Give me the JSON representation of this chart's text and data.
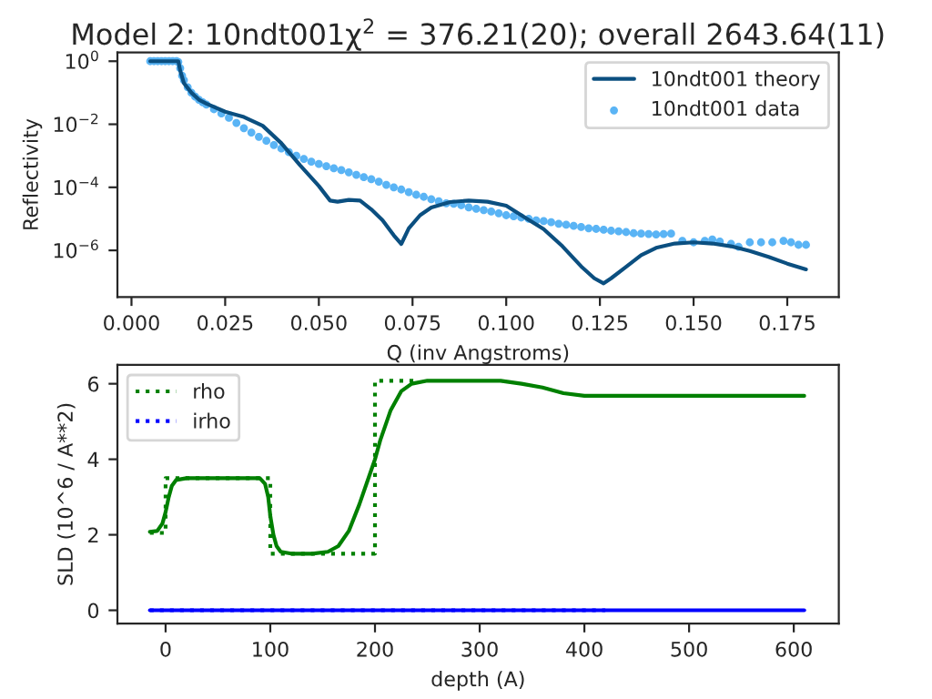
{
  "chart_data": [
    {
      "type": "line",
      "title": "Model 2: 10ndt001χ$^{2}$ = 376.21(20); overall 2643.64(11)",
      "xlabel": "Q (inv Angstroms)",
      "ylabel": "Reflectivity",
      "log": "y",
      "legend": "top right",
      "grid": false,
      "xlim": [
        -0.00375,
        0.18875
      ],
      "ylim": [
        3.3e-08,
        1.9
      ],
      "xticks": [
        {
          "value": 0,
          "label": "0.000"
        },
        0.025,
        {
          "value": 0.05,
          "label": "0.050"
        },
        0.075,
        {
          "value": 0.1,
          "label": "0.100"
        },
        0.125,
        {
          "value": 0.15,
          "label": "0.150"
        },
        0.175
      ],
      "yticks": [
        {
          "value": 1,
          "label": "10$^{0}$"
        },
        {
          "value": 0.01,
          "label": "10$^{−2}$"
        },
        {
          "value": 0.0001,
          "label": "10$^{−4}$"
        },
        {
          "value": 1e-06,
          "label": "10$^{−6}$"
        }
      ],
      "series": [
        {
          "name": "10ndt001 theory",
          "color": "#0b4f80",
          "line_style": "solid",
          "marker": "none",
          "x": [
            0.005,
            0.0125,
            0.013,
            0.014,
            0.016,
            0.018,
            0.02,
            0.025,
            0.03,
            0.035,
            0.04,
            0.045,
            0.05,
            0.053,
            0.055,
            0.058,
            0.061,
            0.064,
            0.067,
            0.07,
            0.072,
            0.074,
            0.077,
            0.08,
            0.085,
            0.09,
            0.095,
            0.1,
            0.105,
            0.11,
            0.115,
            0.12,
            0.1235,
            0.126,
            0.128,
            0.132,
            0.136,
            0.14,
            0.145,
            0.15,
            0.155,
            0.16,
            0.165,
            0.17,
            0.175,
            0.18
          ],
          "values": [
            1,
            1,
            0.5,
            0.2,
            0.1,
            0.06,
            0.045,
            0.025,
            0.017,
            0.009,
            0.0025,
            0.0005,
            0.00011,
            3.8e-05,
            3.5e-05,
            4e-05,
            3.8e-05,
            2e-05,
            9e-06,
            3e-06,
            1.6e-06,
            5e-06,
            1.3e-05,
            2.3e-05,
            3.4e-05,
            3.8e-05,
            3.5e-05,
            2.6e-05,
            1.1e-05,
            4.7e-06,
            1.35e-06,
            3.1e-07,
            1.3e-07,
            9e-08,
            1.3e-07,
            3e-07,
            7e-07,
            1.2e-06,
            1.65e-06,
            1.8e-06,
            1.65e-06,
            1.35e-06,
            9.5e-07,
            6.2e-07,
            3.8e-07,
            2.5e-07
          ]
        },
        {
          "name": "10ndt001 data",
          "type": "scatter",
          "color": "#5ab4f5",
          "marker": "circle",
          "x": [
            0.005,
            0.006,
            0.007,
            0.008,
            0.009,
            0.01,
            0.011,
            0.012,
            0.0125,
            0.013,
            0.0135,
            0.014,
            0.015,
            0.016,
            0.017,
            0.018,
            0.019,
            0.02,
            0.022,
            0.024,
            0.026,
            0.028,
            0.03,
            0.032,
            0.034,
            0.036,
            0.038,
            0.04,
            0.042,
            0.044,
            0.046,
            0.048,
            0.05,
            0.052,
            0.054,
            0.056,
            0.058,
            0.06,
            0.062,
            0.064,
            0.066,
            0.068,
            0.07,
            0.072,
            0.074,
            0.076,
            0.078,
            0.08,
            0.082,
            0.084,
            0.086,
            0.088,
            0.09,
            0.092,
            0.094,
            0.096,
            0.098,
            0.1,
            0.102,
            0.104,
            0.106,
            0.108,
            0.11,
            0.112,
            0.114,
            0.116,
            0.118,
            0.12,
            0.122,
            0.124,
            0.126,
            0.128,
            0.13,
            0.132,
            0.134,
            0.136,
            0.138,
            0.14,
            0.142,
            0.144,
            0.147,
            0.15,
            0.153,
            0.155,
            0.157,
            0.16,
            0.162,
            0.165,
            0.168,
            0.171,
            0.174,
            0.176,
            0.178,
            0.18
          ],
          "values": [
            1,
            1,
            1,
            1,
            1,
            1,
            1,
            1,
            0.95,
            0.6,
            0.35,
            0.25,
            0.15,
            0.1,
            0.075,
            0.06,
            0.05,
            0.042,
            0.03,
            0.022,
            0.016,
            0.011,
            0.0075,
            0.0055,
            0.004,
            0.003,
            0.0022,
            0.0017,
            0.0013,
            0.001,
            0.0008,
            0.00065,
            0.00055,
            0.00047,
            0.0004,
            0.00035,
            0.0003,
            0.00025,
            0.00021,
            0.00018,
            0.00015,
            0.00012,
            0.0001,
            8.5e-05,
            7e-05,
            5.8e-05,
            5e-05,
            4.2e-05,
            3.6e-05,
            3.1e-05,
            3e-05,
            2.7e-05,
            2.3e-05,
            2.1e-05,
            1.9e-05,
            1.7e-05,
            1.5e-05,
            1.3e-05,
            1.2e-05,
            1.1e-05,
            1e-05,
            9e-06,
            8.5e-06,
            7.8e-06,
            7e-06,
            6.5e-06,
            6e-06,
            5.5e-06,
            5e-06,
            4.8e-06,
            4.5e-06,
            4.2e-06,
            4e-06,
            3.8e-06,
            3.5e-06,
            3.4e-06,
            3.3e-06,
            3.2e-06,
            3.3e-06,
            3.4e-06,
            2e-06,
            1.8e-06,
            2e-06,
            2.2e-06,
            1.9e-06,
            1.6e-06,
            1.3e-06,
            1.8e-06,
            1.8e-06,
            1.8e-06,
            2e-06,
            1.8e-06,
            1.5e-06,
            1.5e-06
          ]
        }
      ]
    },
    {
      "type": "line",
      "xlabel": "depth (A)",
      "ylabel": "SLD (10^6 / A**2)",
      "legend": "top left",
      "grid": false,
      "xlim": [
        -46,
        643
      ],
      "ylim": [
        -0.35,
        6.5
      ],
      "xticks": [
        0,
        100,
        200,
        300,
        400,
        500,
        600
      ],
      "yticks": [
        0,
        2,
        4,
        6
      ],
      "series": [
        {
          "name": "rho",
          "color": "#008000",
          "line_style": "dotted",
          "marker": "none",
          "x": [
            -15,
            0,
            0,
            100,
            100,
            200,
            200,
            240
          ],
          "values": [
            2.05,
            2.05,
            3.5,
            3.5,
            1.5,
            1.5,
            6.08,
            6.08
          ]
        },
        {
          "color": "#008000",
          "line_style": "solid",
          "marker": "none",
          "x": [
            -15,
            -8,
            -3,
            0,
            3,
            6,
            10,
            20,
            90,
            95,
            98,
            100,
            103,
            106,
            110,
            120,
            140,
            155,
            165,
            175,
            185,
            195,
            200,
            205,
            215,
            225,
            235,
            250,
            320,
            340,
            360,
            380,
            400,
            610
          ],
          "values": [
            2.08,
            2.1,
            2.3,
            2.6,
            3.0,
            3.3,
            3.45,
            3.5,
            3.5,
            3.35,
            3.0,
            2.5,
            2.0,
            1.7,
            1.55,
            1.5,
            1.5,
            1.55,
            1.7,
            2.1,
            2.8,
            3.6,
            4.0,
            4.5,
            5.3,
            5.8,
            6.0,
            6.08,
            6.08,
            6.0,
            5.9,
            5.75,
            5.68,
            5.68
          ]
        },
        {
          "name": "irho",
          "color": "#0000ff",
          "line_style": "dotted",
          "marker": "none",
          "x": [
            -15,
            420
          ],
          "values": [
            0,
            0
          ]
        },
        {
          "color": "#0000ff",
          "line_style": "solid",
          "marker": "none",
          "x": [
            -15,
            610
          ],
          "values": [
            0,
            0
          ]
        }
      ]
    }
  ]
}
